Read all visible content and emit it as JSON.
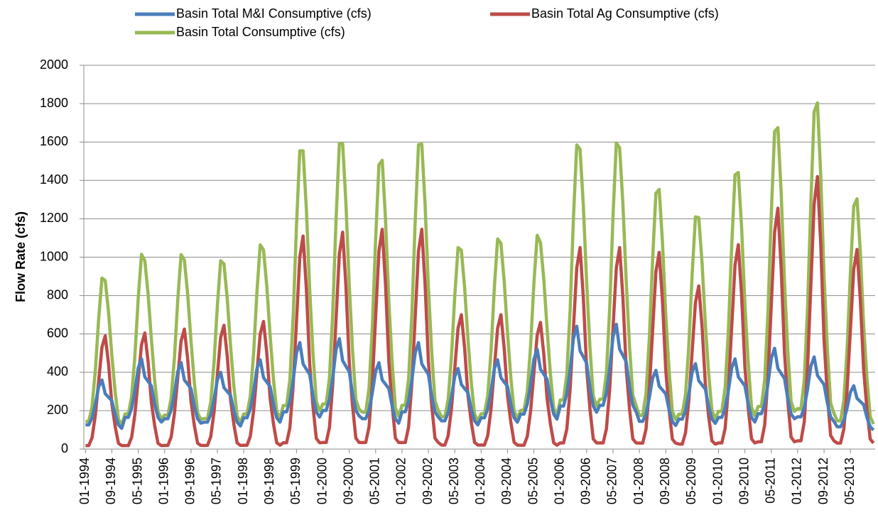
{
  "chart_data": {
    "type": "line",
    "y_label": "Flow Rate (cfs)",
    "categories": [
      "01-1994",
      null,
      null,
      null,
      null,
      null,
      null,
      null,
      "09-1994",
      null,
      null,
      null,
      null,
      null,
      null,
      null,
      "05-1995",
      null,
      null,
      null,
      null,
      null,
      null,
      null,
      "01-1996",
      null,
      null,
      null,
      null,
      null,
      null,
      null,
      "09-1996",
      null,
      null,
      null,
      null,
      null,
      null,
      null,
      "05-1997",
      null,
      null,
      null,
      null,
      null,
      null,
      null,
      "01-1998",
      null,
      null,
      null,
      null,
      null,
      null,
      null,
      "09-1998",
      null,
      null,
      null,
      null,
      null,
      null,
      null,
      "05-1999",
      null,
      null,
      null,
      null,
      null,
      null,
      null,
      "01-2000",
      null,
      null,
      null,
      null,
      null,
      null,
      null,
      "09-2000",
      null,
      null,
      null,
      null,
      null,
      null,
      null,
      "05-2001",
      null,
      null,
      null,
      null,
      null,
      null,
      null,
      "01-2002",
      null,
      null,
      null,
      null,
      null,
      null,
      null,
      "09-2002",
      null,
      null,
      null,
      null,
      null,
      null,
      null,
      "05-2003",
      null,
      null,
      null,
      null,
      null,
      null,
      null,
      "01-2004",
      null,
      null,
      null,
      null,
      null,
      null,
      null,
      "09-2004",
      null,
      null,
      null,
      null,
      null,
      null,
      null,
      "05-2005",
      null,
      null,
      null,
      null,
      null,
      null,
      null,
      "01-2006",
      null,
      null,
      null,
      null,
      null,
      null,
      null,
      "09-2006",
      null,
      null,
      null,
      null,
      null,
      null,
      null,
      "05-2007",
      null,
      null,
      null,
      null,
      null,
      null,
      null,
      "01-2008",
      null,
      null,
      null,
      null,
      null,
      null,
      null,
      "09-2008",
      null,
      null,
      null,
      null,
      null,
      null,
      null,
      "05-2009",
      null,
      null,
      null,
      null,
      null,
      null,
      null,
      "01-2010",
      null,
      null,
      null,
      null,
      null,
      null,
      null,
      "09-2010",
      null,
      null,
      null,
      null,
      null,
      null,
      null,
      "05-2011",
      null,
      null,
      null,
      null,
      null,
      null,
      null,
      "01-2012",
      null,
      null,
      null,
      null,
      null,
      null,
      null,
      "09-2012",
      null,
      null,
      null,
      null,
      null,
      null,
      null,
      "05-2013",
      null,
      null,
      null,
      null,
      null,
      null,
      null
    ],
    "series": [
      {
        "name": "Basin Total M&I Consumptive (cfs)",
        "color": "#4a7ebb",
        "values": [
          126,
          126,
          162,
          234,
          324,
          360,
          288,
          270,
          252,
          180,
          126,
          108,
          165,
          165,
          212,
          306,
          423,
          470,
          376,
          353,
          329,
          235,
          165,
          141,
          158,
          158,
          203,
          293,
          405,
          450,
          360,
          338,
          315,
          225,
          158,
          135,
          140,
          140,
          180,
          260,
          360,
          400,
          320,
          300,
          280,
          200,
          140,
          120,
          163,
          163,
          209,
          302,
          419,
          465,
          372,
          349,
          326,
          233,
          163,
          140,
          194,
          194,
          250,
          361,
          500,
          555,
          444,
          416,
          389,
          278,
          194,
          167,
          201,
          201,
          259,
          374,
          518,
          575,
          460,
          431,
          403,
          288,
          201,
          173,
          158,
          158,
          203,
          293,
          405,
          450,
          360,
          338,
          315,
          225,
          158,
          135,
          194,
          194,
          250,
          361,
          500,
          555,
          444,
          416,
          389,
          278,
          194,
          167,
          147,
          147,
          189,
          273,
          378,
          420,
          336,
          315,
          294,
          210,
          147,
          126,
          163,
          163,
          209,
          302,
          419,
          465,
          372,
          349,
          326,
          233,
          163,
          140,
          182,
          182,
          234,
          338,
          468,
          520,
          416,
          390,
          364,
          260,
          182,
          156,
          224,
          224,
          288,
          416,
          576,
          640,
          512,
          480,
          448,
          320,
          224,
          192,
          228,
          228,
          293,
          423,
          585,
          650,
          520,
          488,
          455,
          325,
          228,
          195,
          144,
          144,
          185,
          267,
          369,
          410,
          328,
          308,
          287,
          205,
          144,
          123,
          156,
          156,
          200,
          289,
          401,
          445,
          356,
          334,
          312,
          223,
          156,
          134,
          165,
          165,
          212,
          306,
          423,
          470,
          376,
          353,
          329,
          235,
          165,
          141,
          184,
          184,
          236,
          341,
          473,
          525,
          420,
          394,
          368,
          263,
          184,
          158,
          168,
          168,
          216,
          312,
          432,
          480,
          384,
          360,
          336,
          240,
          168,
          144,
          116,
          116,
          149,
          215,
          297,
          330,
          264,
          248,
          231,
          165,
          116,
          99
        ]
      },
      {
        "name": "Basin Total Ag Consumptive (cfs)",
        "color": "#be4b48",
        "values": [
          18,
          18,
          59,
          177,
          354,
          531,
          590,
          443,
          236,
          118,
          30,
          18,
          18,
          18,
          61,
          182,
          363,
          545,
          605,
          454,
          242,
          121,
          30,
          18,
          19,
          19,
          63,
          188,
          375,
          563,
          625,
          469,
          250,
          125,
          31,
          19,
          19,
          19,
          65,
          194,
          387,
          581,
          645,
          484,
          258,
          129,
          32,
          19,
          20,
          20,
          67,
          200,
          399,
          599,
          665,
          499,
          266,
          133,
          33,
          20,
          33,
          33,
          111,
          333,
          666,
          999,
          1110,
          833,
          444,
          222,
          56,
          33,
          34,
          34,
          113,
          339,
          678,
          1017,
          1130,
          848,
          452,
          226,
          57,
          34,
          34,
          34,
          115,
          344,
          687,
          1031,
          1145,
          859,
          458,
          229,
          57,
          34,
          34,
          34,
          115,
          344,
          687,
          1031,
          1145,
          859,
          458,
          229,
          57,
          34,
          21,
          21,
          70,
          210,
          420,
          630,
          700,
          525,
          280,
          140,
          35,
          21,
          21,
          21,
          70,
          210,
          420,
          630,
          700,
          525,
          280,
          140,
          35,
          21,
          20,
          20,
          66,
          198,
          396,
          594,
          660,
          495,
          264,
          132,
          33,
          20,
          32,
          32,
          105,
          315,
          630,
          945,
          1050,
          788,
          420,
          210,
          53,
          32,
          32,
          32,
          105,
          315,
          630,
          945,
          1050,
          788,
          420,
          210,
          53,
          32,
          31,
          31,
          103,
          308,
          615,
          923,
          1025,
          769,
          410,
          205,
          51,
          31,
          26,
          26,
          85,
          255,
          510,
          765,
          850,
          638,
          340,
          170,
          43,
          26,
          32,
          32,
          107,
          320,
          639,
          959,
          1065,
          799,
          426,
          213,
          53,
          32,
          38,
          38,
          126,
          377,
          753,
          1130,
          1255,
          941,
          502,
          251,
          63,
          38,
          43,
          43,
          142,
          426,
          852,
          1278,
          1420,
          1065,
          568,
          284,
          71,
          43,
          31,
          31,
          104,
          312,
          624,
          936,
          1040,
          780,
          416,
          208,
          52,
          31
        ]
      },
      {
        "name": "Basin Total Consumptive (cfs)",
        "color": "#98b954",
        "values": [
          144,
          144,
          221,
          411,
          678,
          891,
          878,
          713,
          488,
          298,
          156,
          126,
          183,
          183,
          273,
          488,
          786,
          1015,
          981,
          807,
          571,
          356,
          195,
          159,
          177,
          177,
          266,
          481,
          780,
          1013,
          985,
          807,
          565,
          350,
          189,
          154,
          159,
          159,
          245,
          454,
          747,
          981,
          965,
          784,
          538,
          329,
          172,
          139,
          183,
          183,
          276,
          502,
          818,
          1064,
          1037,
          848,
          592,
          366,
          196,
          160,
          227,
          227,
          361,
          694,
          1166,
          1554,
          1554,
          1249,
          833,
          500,
          250,
          200,
          235,
          235,
          372,
          713,
          1196,
          1592,
          1590,
          1279,
          855,
          514,
          258,
          207,
          192,
          192,
          318,
          637,
          1092,
          1481,
          1505,
          1197,
          773,
          454,
          215,
          169,
          228,
          228,
          365,
          705,
          1187,
          1586,
          1589,
          1275,
          847,
          507,
          251,
          201,
          168,
          168,
          259,
          483,
          798,
          1050,
          1036,
          840,
          574,
          350,
          182,
          147,
          184,
          184,
          279,
          512,
          839,
          1095,
          1072,
          874,
          606,
          373,
          198,
          161,
          202,
          202,
          300,
          536,
          864,
          1114,
          1076,
          885,
          628,
          392,
          215,
          176,
          256,
          256,
          393,
          731,
          1206,
          1585,
          1562,
          1268,
          868,
          530,
          277,
          224,
          260,
          260,
          398,
          738,
          1215,
          1595,
          1570,
          1276,
          875,
          535,
          281,
          227,
          175,
          175,
          288,
          575,
          984,
          1333,
          1353,
          1077,
          697,
          410,
          195,
          154,
          182,
          182,
          285,
          544,
          911,
          1210,
          1206,
          972,
          652,
          393,
          199,
          160,
          197,
          197,
          319,
          626,
          1062,
          1429,
          1441,
          1152,
          755,
          448,
          218,
          173,
          222,
          222,
          362,
          718,
          1226,
          1655,
          1675,
          1335,
          870,
          514,
          247,
          196,
          211,
          211,
          358,
          738,
          1284,
          1758,
          1804,
          1425,
          904,
          524,
          239,
          187,
          147,
          147,
          253,
          527,
          921,
          1266,
          1304,
          1028,
          647,
          373,
          168,
          130
        ]
      }
    ],
    "ylim": [
      0,
      2000
    ],
    "yticks": [
      0,
      200,
      400,
      600,
      800,
      1000,
      1200,
      1400,
      1600,
      1800,
      2000
    ],
    "grid": true
  }
}
